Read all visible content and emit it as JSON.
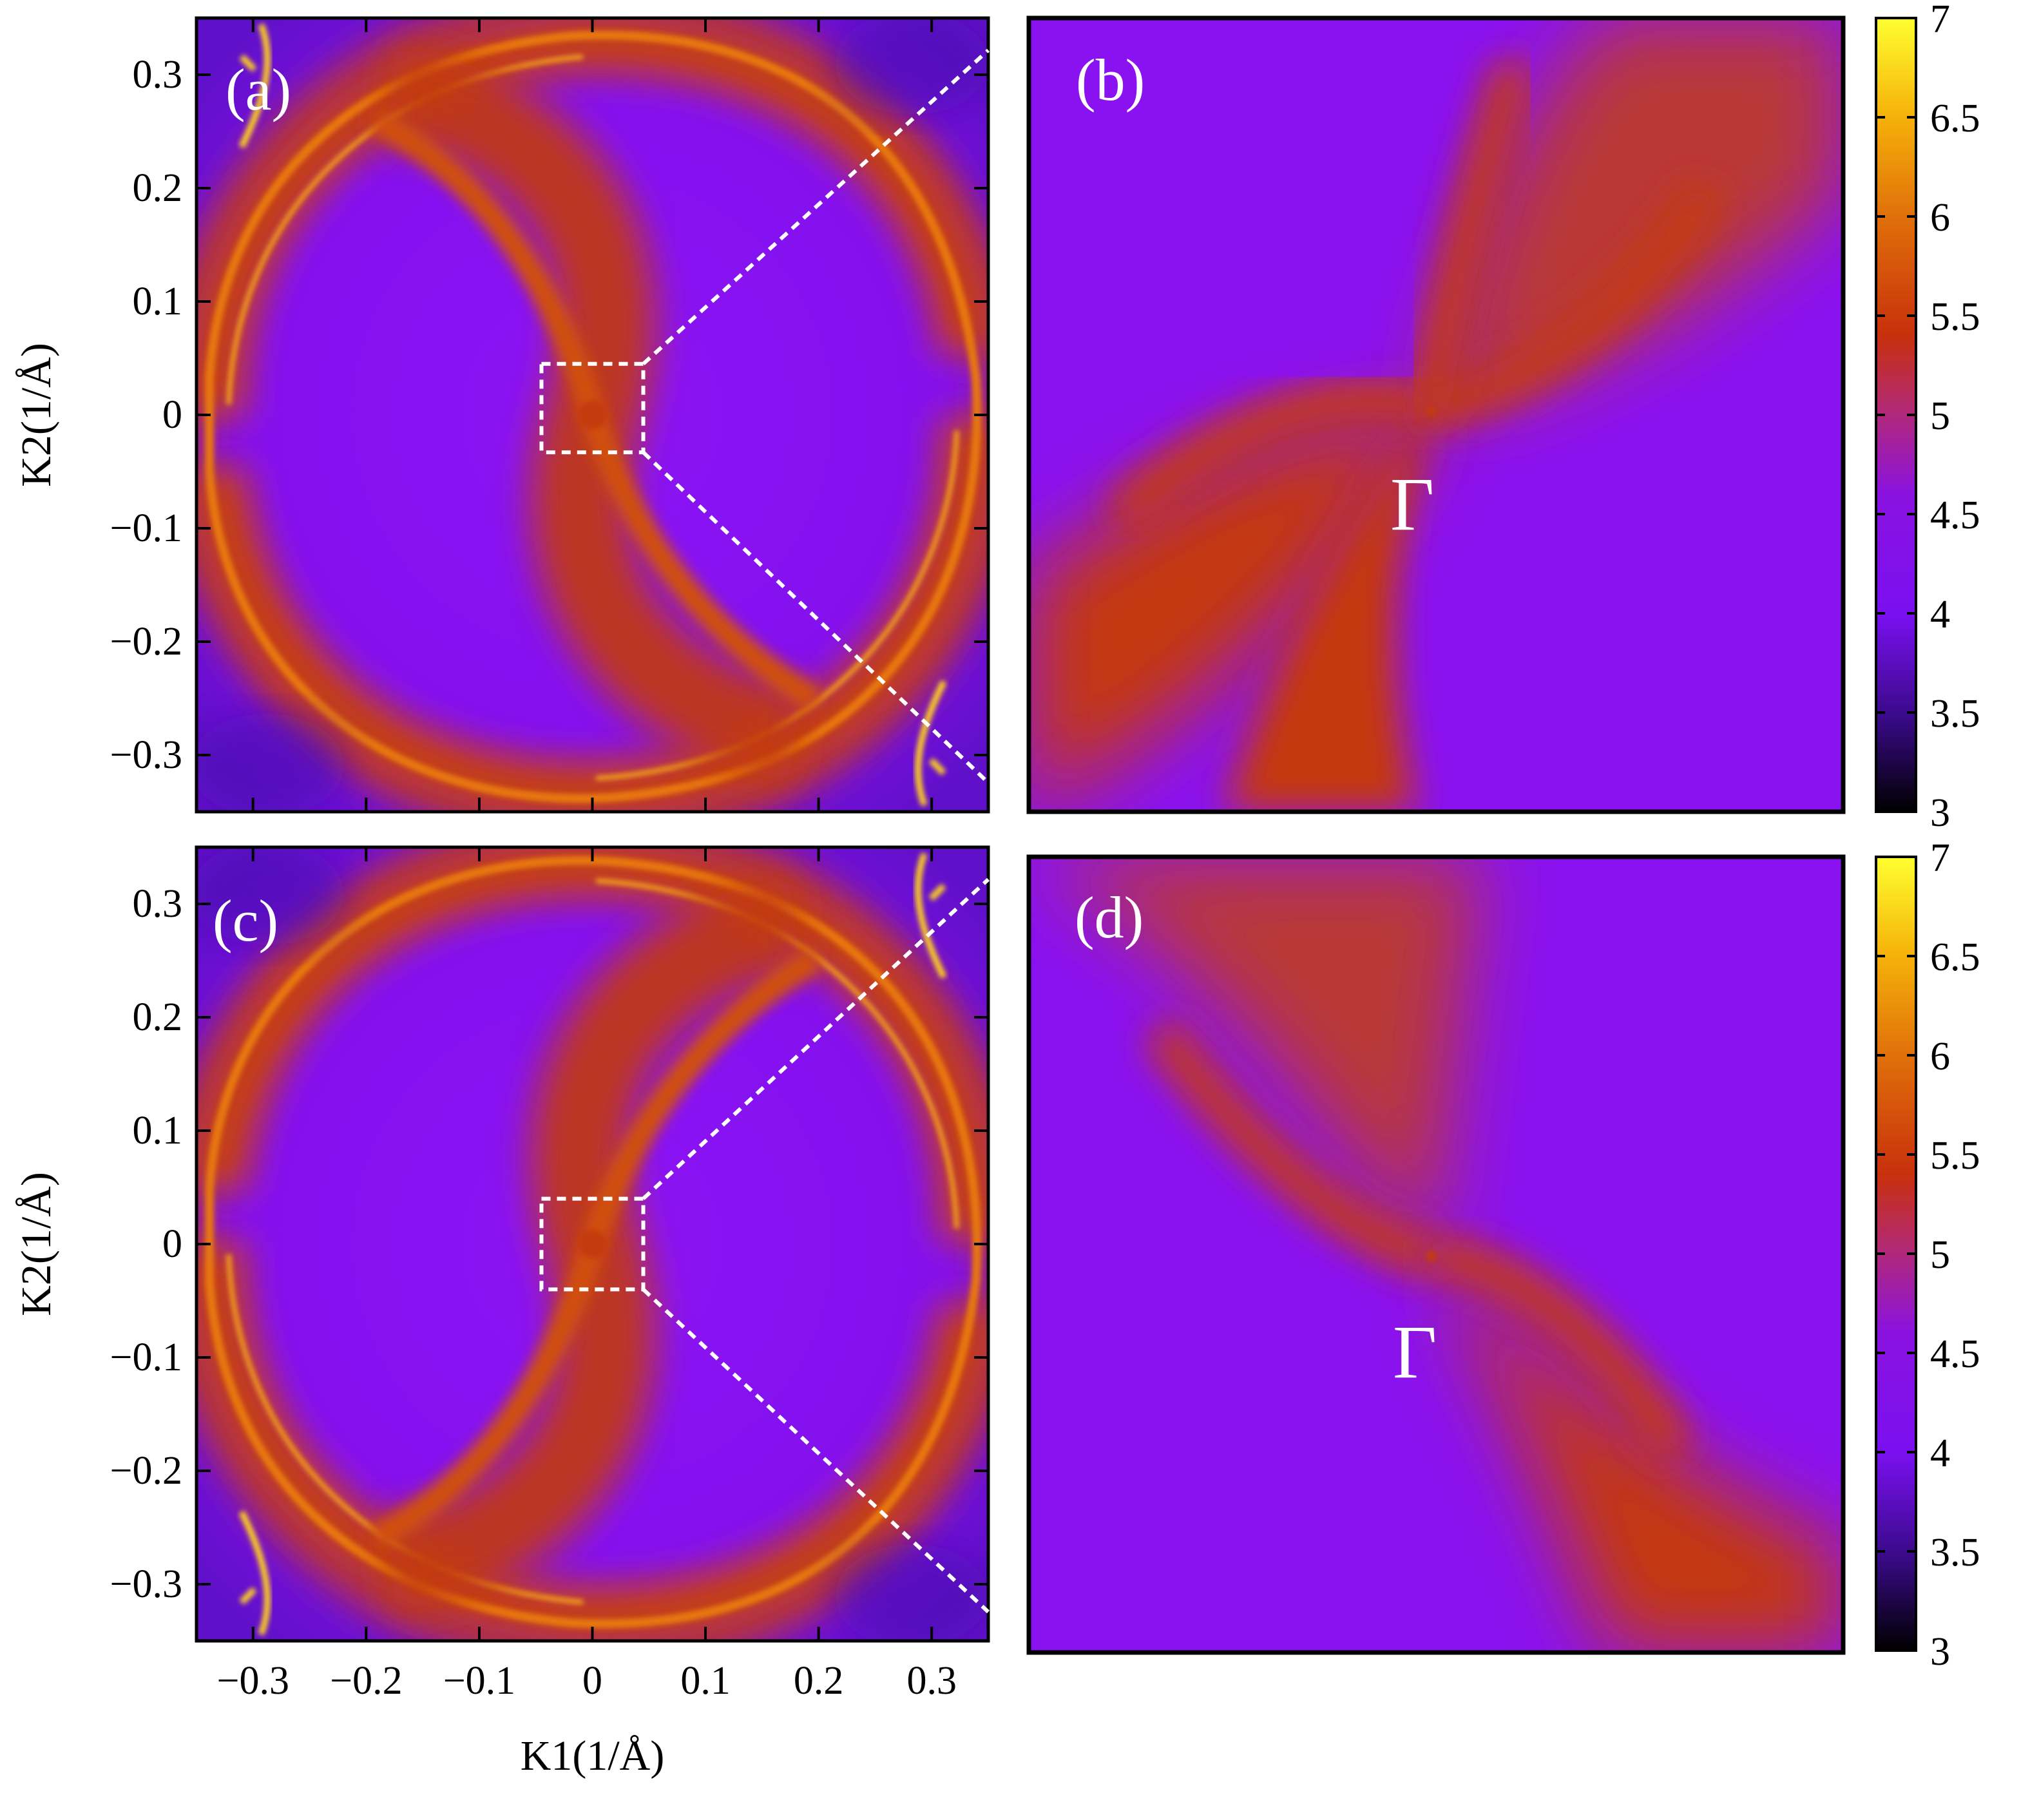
{
  "chart_data": [
    {
      "type": "heatmap",
      "panel_label": "(a)",
      "xlabel": "",
      "ylabel": "K2(1/Å)",
      "xlim": [
        -0.35,
        0.35
      ],
      "ylim": [
        -0.35,
        0.35
      ],
      "x_ticks": [],
      "y_ticks": [
        "0.3",
        "0.2",
        "0.1",
        "0",
        "−0.1",
        "−0.2",
        "−0.3"
      ],
      "zoom_box": {
        "x": [
          -0.045,
          0.045
        ],
        "y": [
          -0.033,
          0.045
        ]
      }
    },
    {
      "type": "heatmap",
      "panel_label": "(b)",
      "annotation": "Γ",
      "colorbar": {
        "range": [
          3,
          7
        ],
        "ticks": [
          "7",
          "6.5",
          "6",
          "5.5",
          "5",
          "4.5",
          "4",
          "3.5",
          "3"
        ]
      }
    },
    {
      "type": "heatmap",
      "panel_label": "(c)",
      "xlabel": "K1(1/Å)",
      "ylabel": "K2(1/Å)",
      "xlim": [
        -0.35,
        0.35
      ],
      "ylim": [
        -0.35,
        0.35
      ],
      "x_ticks": [
        "−0.3",
        "−0.2",
        "−0.1",
        "0",
        "0.1",
        "0.2",
        "0.3"
      ],
      "y_ticks": [
        "0.3",
        "0.2",
        "0.1",
        "0",
        "−0.1",
        "−0.2",
        "−0.3"
      ],
      "zoom_box": {
        "x": [
          -0.045,
          0.045
        ],
        "y": [
          -0.04,
          0.04
        ]
      }
    },
    {
      "type": "heatmap",
      "panel_label": "(d)",
      "annotation": "Γ",
      "colorbar": {
        "range": [
          3,
          7
        ],
        "ticks": [
          "7",
          "6.5",
          "6",
          "5.5",
          "5",
          "4.5",
          "4",
          "3.5",
          "3"
        ]
      }
    }
  ],
  "colors": {
    "background_violet": "#8a10f2",
    "ridge_red": "#c23a08",
    "ridge_orange": "#e06a10",
    "bright_yellow": "#ffe21a",
    "zoom_box_line": "#ffffff"
  }
}
